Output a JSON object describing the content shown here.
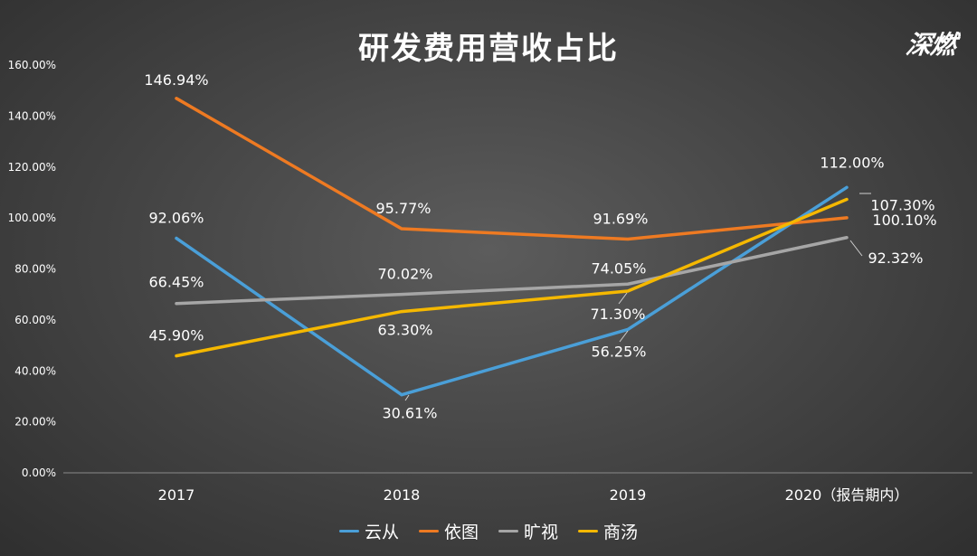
{
  "chart_data": {
    "type": "line",
    "title": "研发费用营收占比",
    "categories": [
      "2017",
      "2018",
      "2019",
      "2020（报告期内）"
    ],
    "ylim": [
      0,
      160
    ],
    "yticks": [
      "0.00%",
      "20.00%",
      "40.00%",
      "60.00%",
      "80.00%",
      "100.00%",
      "120.00%",
      "140.00%",
      "160.00%"
    ],
    "grid": false,
    "legend": "bottom",
    "series": [
      {
        "name": "云从",
        "color": "#4a9fd8",
        "values": [
          92.06,
          30.61,
          56.25,
          112.0
        ],
        "labels": [
          "92.06%",
          "30.61%",
          "56.25%",
          "112.00%"
        ]
      },
      {
        "name": "依图",
        "color": "#ee7a22",
        "values": [
          146.94,
          95.77,
          91.69,
          100.1
        ],
        "labels": [
          "146.94%",
          "95.77%",
          "91.69%",
          "100.10%"
        ]
      },
      {
        "name": "旷视",
        "color": "#a6a6a6",
        "values": [
          66.45,
          70.02,
          74.05,
          92.32
        ],
        "labels": [
          "66.45%",
          "70.02%",
          "74.05%",
          "92.32%"
        ]
      },
      {
        "name": "商汤",
        "color": "#f5b800",
        "values": [
          45.9,
          63.3,
          71.3,
          107.3
        ],
        "labels": [
          "45.90%",
          "63.30%",
          "71.30%",
          "107.30%"
        ]
      }
    ]
  },
  "logo": "深燃"
}
